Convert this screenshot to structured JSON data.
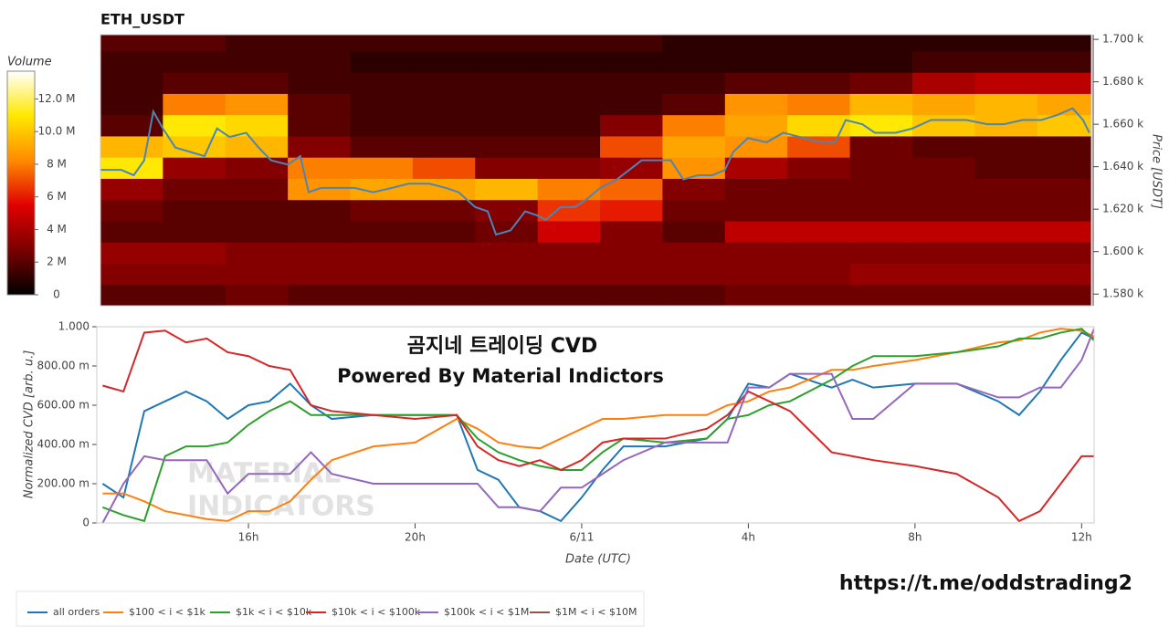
{
  "chart_data": [
    {
      "type": "heatmap",
      "title": "ETH_USDT",
      "ylabel": "Price [USDT]",
      "xlim": [
        12.5,
        36.3
      ],
      "ylim": [
        1574.5,
        1702.2
      ],
      "yticks": [
        {
          "value": 1580,
          "label": "1.580 k"
        },
        {
          "value": 1600,
          "label": "1.600 k"
        },
        {
          "value": 1620,
          "label": "1.620 k"
        },
        {
          "value": 1640,
          "label": "1.640 k"
        },
        {
          "value": 1660,
          "label": "1.660 k"
        },
        {
          "value": 1680,
          "label": "1.680 k"
        },
        {
          "value": 1700,
          "label": "1.700 k"
        }
      ],
      "x_bins": [
        12.5,
        14,
        15.5,
        17,
        18.5,
        20,
        21.5,
        23,
        24.5,
        26,
        27.5,
        29,
        30.5,
        32,
        33.5,
        35,
        36.5
      ],
      "price_bins": [
        1574.5,
        1584.5,
        1594.5,
        1604.5,
        1614.5,
        1624.5,
        1634.5,
        1644.5,
        1654.5,
        1664.5,
        1674.5,
        1684.5,
        1694.5,
        1704.5
      ],
      "z": [
        [
          2000000,
          2000000,
          2500000,
          2000000,
          2000000,
          2000000,
          2000000,
          2000000,
          2000000,
          2000000,
          2500000,
          2500000,
          2500000,
          2500000,
          2500000,
          2500000
        ],
        [
          3000000,
          3000000,
          3000000,
          3000000,
          3000000,
          3000000,
          3000000,
          3000000,
          3000000,
          3000000,
          3000000,
          3000000,
          3500000,
          3500000,
          3500000,
          3500000
        ],
        [
          3500000,
          3500000,
          3000000,
          3000000,
          3000000,
          3000000,
          3000000,
          3000000,
          3000000,
          3000000,
          3000000,
          3000000,
          3000000,
          3000000,
          3000000,
          3000000
        ],
        [
          2000000,
          2000000,
          2000000,
          2000000,
          2000000,
          2000000,
          2500000,
          5000000,
          3000000,
          2000000,
          4500000,
          4500000,
          4500000,
          4500000,
          4500000,
          4500000
        ],
        [
          2500000,
          2000000,
          2000000,
          2000000,
          2500000,
          2500000,
          3000000,
          6500000,
          6000000,
          2500000,
          2500000,
          2500000,
          2500000,
          2500000,
          2500000,
          2500000
        ],
        [
          3500000,
          2500000,
          2500000,
          8500000,
          9000000,
          9000000,
          9500000,
          8000000,
          7500000,
          3000000,
          2500000,
          2500000,
          2500000,
          2500000,
          2500000,
          2500000
        ],
        [
          11000000,
          3500000,
          3000000,
          8000000,
          8000000,
          7000000,
          3000000,
          3000000,
          3500000,
          8500000,
          4000000,
          3000000,
          2500000,
          2500000,
          2000000,
          2000000
        ],
        [
          9500000,
          10000000,
          9500000,
          3000000,
          2000000,
          2000000,
          2000000,
          2000000,
          7000000,
          9000000,
          8500000,
          7000000,
          2500000,
          2000000,
          2000000,
          2000000
        ],
        [
          2000000,
          11000000,
          10500000,
          2000000,
          1500000,
          1500000,
          1500000,
          1500000,
          3000000,
          8000000,
          9000000,
          10500000,
          11000000,
          10000000,
          9500000,
          10000000
        ],
        [
          1500000,
          8000000,
          8500000,
          2000000,
          1500000,
          1500000,
          1500000,
          1500000,
          1500000,
          2000000,
          8500000,
          8000000,
          9500000,
          9000000,
          9500000,
          9000000
        ],
        [
          1500000,
          2000000,
          2000000,
          1500000,
          1500000,
          1500000,
          1500000,
          1500000,
          1500000,
          1500000,
          2000000,
          2000000,
          2500000,
          4000000,
          4500000,
          4500000
        ],
        [
          1500000,
          1500000,
          1500000,
          1500000,
          1000000,
          1000000,
          1000000,
          1000000,
          1000000,
          1000000,
          1000000,
          1000000,
          1000000,
          1500000,
          1500000,
          1500000
        ],
        [
          2000000,
          2000000,
          1500000,
          1500000,
          1500000,
          1500000,
          1500000,
          1500000,
          1500000,
          1000000,
          1000000,
          1000000,
          1000000,
          1000000,
          1000000,
          1000000
        ]
      ],
      "colorscale": [
        "#000000",
        "#7a0000",
        "#e00000",
        "#ff8a00",
        "#ffe800",
        "#ffffff"
      ],
      "colorbar": {
        "title": "Volume",
        "zlim": [
          0,
          13700000
        ],
        "ticks": [
          0,
          {
            "value": 2000000,
            "label": "2 M"
          },
          {
            "value": 4000000,
            "label": "4 M"
          },
          {
            "value": 6000000,
            "label": "6 M"
          },
          {
            "value": 8000000,
            "label": "8 M"
          },
          {
            "value": 10000000,
            "label": "10.0 M"
          },
          {
            "value": 12000000,
            "label": "12.0 M"
          }
        ]
      },
      "price_line": {
        "color": "#4a86b8",
        "x": [
          12.5,
          13.0,
          13.3,
          13.55,
          13.77,
          14.0,
          14.3,
          14.65,
          15.0,
          15.3,
          15.6,
          16.0,
          16.3,
          16.6,
          17.0,
          17.3,
          17.5,
          17.8,
          18.2,
          18.6,
          19.05,
          19.5,
          19.9,
          20.4,
          20.8,
          21.1,
          21.5,
          21.8,
          22.0,
          22.35,
          22.7,
          23.0,
          23.2,
          23.55,
          23.9,
          24.2,
          24.5,
          24.9,
          25.2,
          25.5,
          25.85,
          26.2,
          26.5,
          26.85,
          27.2,
          27.5,
          27.7,
          28.05,
          28.5,
          28.9,
          29.4,
          29.8,
          30.15,
          30.4,
          30.8,
          31.1,
          31.6,
          32.0,
          32.45,
          32.9,
          33.3,
          33.8,
          34.2,
          34.65,
          35.1,
          35.5,
          35.85,
          36.1,
          36.25
        ],
        "values": [
          1638.5,
          1638.5,
          1636,
          1643,
          1666,
          1658,
          1649,
          1647,
          1645,
          1658,
          1654,
          1656,
          1649,
          1643,
          1641,
          1645,
          1628,
          1630,
          1630,
          1630,
          1628,
          1630,
          1632,
          1632,
          1630,
          1628,
          1621,
          1619,
          1608,
          1610,
          1619,
          1617,
          1615,
          1621,
          1621,
          1625,
          1630,
          1634,
          1638.5,
          1643,
          1643,
          1643,
          1634,
          1636,
          1636,
          1638.5,
          1647,
          1653.5,
          1651.5,
          1656,
          1653.5,
          1651.5,
          1651.5,
          1662,
          1660,
          1656,
          1656,
          1658,
          1662,
          1662,
          1662,
          1660,
          1660,
          1662,
          1662,
          1664.5,
          1667.5,
          1662,
          1656
        ]
      }
    },
    {
      "type": "line",
      "xlabel": "Date (UTC)",
      "ylabel": "Normalized CVD [arb. u.]",
      "xlim": [
        12.36,
        36.3
      ],
      "ylim": [
        0,
        1
      ],
      "xticks": [
        {
          "value": 16,
          "label": "16h"
        },
        {
          "value": 20,
          "label": "20h"
        },
        {
          "value": 24,
          "label": "6/11"
        },
        {
          "value": 28,
          "label": "4h"
        },
        {
          "value": 32,
          "label": "8h"
        },
        {
          "value": 36,
          "label": "12h"
        }
      ],
      "yticks": [
        0,
        {
          "value": 0.2,
          "label": "200.00 m"
        },
        {
          "value": 0.4,
          "label": "400.00 m"
        },
        {
          "value": 0.6,
          "label": "600.00 m"
        },
        {
          "value": 0.8,
          "label": "800.00 m"
        },
        {
          "value": 1,
          "label": "1.000"
        }
      ],
      "annotations": [
        "곰지네 트레이딩 CVD",
        "Powered By Material Indictors",
        "MATERIAL",
        "INDICATORS",
        "https://t.me/oddstrading2"
      ],
      "x": [
        12.5,
        13,
        13.5,
        14,
        14.5,
        15,
        15.5,
        16,
        16.5,
        17,
        17.5,
        18,
        19,
        20,
        21,
        21.5,
        22,
        22.5,
        23,
        23.5,
        24,
        24.5,
        25,
        26,
        27,
        27.5,
        28,
        28.5,
        29,
        30,
        30.5,
        31,
        32,
        33,
        34,
        34.5,
        35,
        35.5,
        36,
        36.3
      ],
      "series": [
        {
          "name": "all orders",
          "color": "#1f77b4",
          "values": [
            0.2,
            0.13,
            0.57,
            0.62,
            0.67,
            0.62,
            0.53,
            0.6,
            0.62,
            0.71,
            0.6,
            0.53,
            0.55,
            0.55,
            0.55,
            0.27,
            0.22,
            0.08,
            0.06,
            0.01,
            0.13,
            0.27,
            0.39,
            0.39,
            0.43,
            0.53,
            0.71,
            0.69,
            0.76,
            0.69,
            0.73,
            0.69,
            0.71,
            0.71,
            0.62,
            0.55,
            0.67,
            0.83,
            0.97,
            0.94
          ]
        },
        {
          "name": "$100 < i < $1k",
          "color": "#ff7f0e",
          "values": [
            0.15,
            0.15,
            0.11,
            0.06,
            0.04,
            0.02,
            0.01,
            0.06,
            0.06,
            0.11,
            0.22,
            0.32,
            0.39,
            0.41,
            0.53,
            0.48,
            0.41,
            0.39,
            0.38,
            0.43,
            0.48,
            0.53,
            0.53,
            0.55,
            0.55,
            0.6,
            0.62,
            0.67,
            0.69,
            0.78,
            0.78,
            0.8,
            0.83,
            0.87,
            0.92,
            0.93,
            0.97,
            0.99,
            0.98,
            0.95
          ]
        },
        {
          "name": "$1k < i < $10k",
          "color": "#2ca02c",
          "values": [
            0.08,
            0.04,
            0.01,
            0.34,
            0.39,
            0.39,
            0.41,
            0.5,
            0.57,
            0.62,
            0.55,
            0.55,
            0.55,
            0.55,
            0.55,
            0.43,
            0.36,
            0.32,
            0.29,
            0.27,
            0.27,
            0.36,
            0.43,
            0.41,
            0.43,
            0.53,
            0.55,
            0.6,
            0.62,
            0.73,
            0.8,
            0.85,
            0.85,
            0.87,
            0.9,
            0.94,
            0.94,
            0.97,
            0.99,
            0.93
          ]
        },
        {
          "name": "$10k < i < $100k",
          "color": "#d62728",
          "values": [
            0.7,
            0.67,
            0.97,
            0.98,
            0.92,
            0.94,
            0.87,
            0.85,
            0.8,
            0.78,
            0.6,
            0.57,
            0.55,
            0.53,
            0.55,
            0.39,
            0.32,
            0.29,
            0.32,
            0.27,
            0.32,
            0.41,
            0.43,
            0.43,
            0.48,
            0.55,
            0.67,
            0.62,
            0.57,
            0.36,
            0.34,
            0.32,
            0.29,
            0.25,
            0.13,
            0.01,
            0.06,
            0.2,
            0.34,
            0.34
          ]
        },
        {
          "name": "$100k < i < $1M",
          "color": "#9467bd",
          "values": [
            0,
            0.2,
            0.34,
            0.32,
            0.32,
            0.32,
            0.15,
            0.25,
            0.25,
            0.25,
            0.36,
            0.25,
            0.2,
            0.2,
            0.2,
            0.2,
            0.08,
            0.08,
            0.06,
            0.18,
            0.18,
            0.25,
            0.32,
            0.41,
            0.41,
            0.41,
            0.69,
            0.69,
            0.76,
            0.76,
            0.53,
            0.53,
            0.71,
            0.71,
            0.64,
            0.64,
            0.69,
            0.69,
            0.83,
            0.99
          ]
        },
        {
          "name": "$1M < i < $10M",
          "color": "#8c564b",
          "values": [
            null,
            null,
            null,
            null,
            null,
            null,
            null,
            null,
            null,
            null,
            null,
            null,
            null,
            null,
            null,
            null,
            null,
            null,
            null,
            null,
            null,
            null,
            null,
            null,
            null,
            null,
            null,
            null,
            null,
            null,
            null,
            null,
            null,
            null,
            null,
            null,
            null,
            null,
            null,
            null
          ]
        }
      ]
    }
  ]
}
